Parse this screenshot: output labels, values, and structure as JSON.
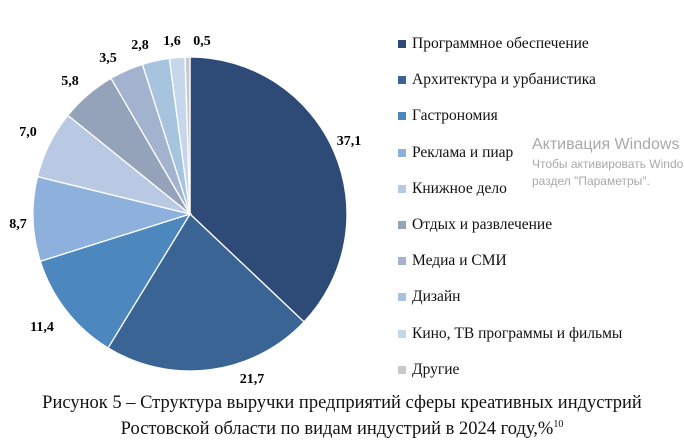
{
  "chart_data": {
    "type": "pie",
    "title": "",
    "start": "top",
    "direction": "clockwise",
    "categories": [
      "Программное обеспечение",
      "Архитектура и урбанистика",
      "Гастрономия",
      "Реклама и пиар",
      "Книжное дело",
      "Отдых и развлечение",
      "Медиа и СМИ",
      "Дизайн",
      "Кино, ТВ программы и фильмы",
      "Другие"
    ],
    "values": [
      37.1,
      21.7,
      11.4,
      8.7,
      7.0,
      5.8,
      3.5,
      2.8,
      1.6,
      0.5
    ],
    "data_labels": [
      "37,1",
      "21,7",
      "11,4",
      "8,7",
      "7,0",
      "5,8",
      "3,5",
      "2,8",
      "1,6",
      "0,5"
    ],
    "colors": [
      "#2e4b78",
      "#3a6494",
      "#4c87bd",
      "#8db0dd",
      "#b9c9e3",
      "#95a3ba",
      "#a3b3cf",
      "#a7c4de",
      "#c6d7ec",
      "#c8c8c8"
    ],
    "legend_position": "right"
  },
  "caption": {
    "line1": "Рисунок 5 – Структура выручки предприятий сферы креативных индустрий",
    "line2": "Ростовской области по видам индустрий в 2024 году,%",
    "footnote": "10"
  },
  "watermark": {
    "title": "Активация Windows",
    "line1": "Чтобы активировать Windo",
    "line2": "раздел \"Параметры\"."
  }
}
